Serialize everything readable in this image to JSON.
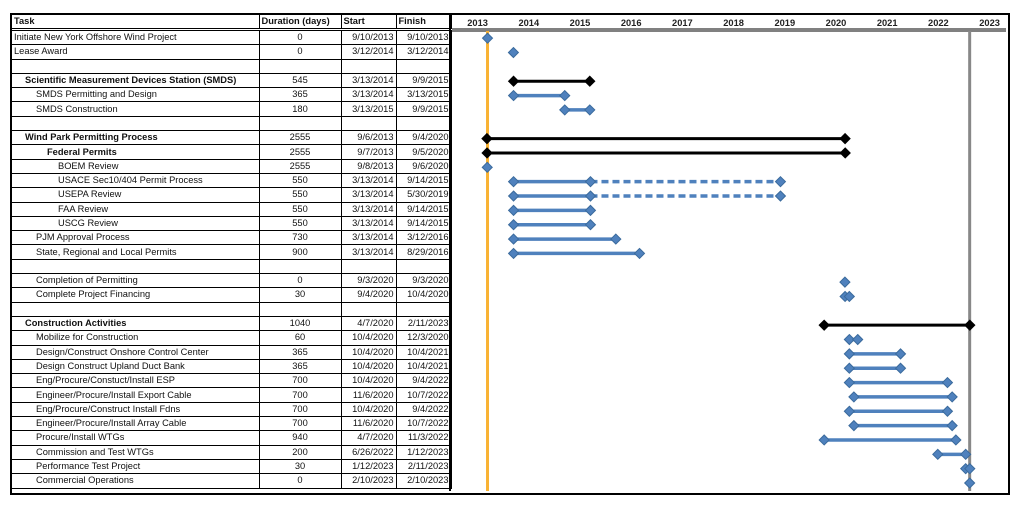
{
  "chart_data": {
    "type": "gantt",
    "columns": [
      "Task",
      "Duration (days)",
      "Start",
      "Finish"
    ],
    "x_ticks": [
      "2013",
      "2014",
      "2015",
      "2016",
      "2017",
      "2018",
      "2019",
      "2020",
      "2021",
      "2022",
      "2023"
    ],
    "xlim": [
      "1/1/2013",
      "12/31/2023"
    ],
    "grid": false,
    "colors": {
      "task": "#4f81bd",
      "summary": "#000000",
      "start_line": "#f9b233",
      "end_line": "#888888"
    },
    "reference_lines": [
      {
        "date": "9/10/2013",
        "color": "#f9b233"
      },
      {
        "date": "2/10/2023",
        "color": "#888888"
      }
    ],
    "rows": [
      {
        "task": "Initiate New York Offshore Wind Project",
        "level": 0,
        "bold": false,
        "duration": "0",
        "start": "9/10/2013",
        "finish": "9/10/2013",
        "kind": "milestone"
      },
      {
        "task": "Lease Award",
        "level": 0,
        "bold": false,
        "duration": "0",
        "start": "3/12/2014",
        "finish": "3/12/2014",
        "kind": "milestone"
      },
      {
        "task": "",
        "level": 0,
        "bold": false,
        "duration": "",
        "start": "",
        "finish": "",
        "kind": "blank"
      },
      {
        "task": "Scientific Measurement Devices Station (SMDS)",
        "level": 1,
        "bold": true,
        "duration": "545",
        "start": "3/13/2014",
        "finish": "9/9/2015",
        "kind": "summary"
      },
      {
        "task": "SMDS Permitting and Design",
        "level": 2,
        "bold": false,
        "duration": "365",
        "start": "3/13/2014",
        "finish": "3/13/2015",
        "kind": "task"
      },
      {
        "task": "SMDS Construction",
        "level": 2,
        "bold": false,
        "duration": "180",
        "start": "3/13/2015",
        "finish": "9/9/2015",
        "kind": "task"
      },
      {
        "task": "",
        "level": 0,
        "bold": false,
        "duration": "",
        "start": "",
        "finish": "",
        "kind": "blank"
      },
      {
        "task": "Wind Park Permitting Process",
        "level": 1,
        "bold": true,
        "duration": "2555",
        "start": "9/6/2013",
        "finish": "9/4/2020",
        "kind": "summary"
      },
      {
        "task": "Federal Permits",
        "level": 3,
        "bold": true,
        "duration": "2555",
        "start": "9/7/2013",
        "finish": "9/5/2020",
        "kind": "summary"
      },
      {
        "task": "BOEM Review",
        "level": 4,
        "bold": false,
        "duration": "2555",
        "start": "9/8/2013",
        "finish": "9/6/2020",
        "kind": "milestone"
      },
      {
        "task": "USACE Sec10/404 Permit Process",
        "level": 4,
        "bold": false,
        "duration": "550",
        "start": "3/13/2014",
        "finish": "9/14/2015",
        "kind": "task",
        "dashed_to": "5/30/2019"
      },
      {
        "task": "USEPA Review",
        "level": 4,
        "bold": false,
        "duration": "550",
        "start": "3/13/2014",
        "finish": "5/30/2019",
        "kind": "task",
        "solid_to": "9/14/2015",
        "dashed_to": "5/30/2019"
      },
      {
        "task": "FAA Review",
        "level": 4,
        "bold": false,
        "duration": "550",
        "start": "3/13/2014",
        "finish": "9/14/2015",
        "kind": "task"
      },
      {
        "task": "USCG Review",
        "level": 4,
        "bold": false,
        "duration": "550",
        "start": "3/13/2014",
        "finish": "9/14/2015",
        "kind": "task"
      },
      {
        "task": "PJM Approval Process",
        "level": 2,
        "bold": false,
        "duration": "730",
        "start": "3/13/2014",
        "finish": "3/12/2016",
        "kind": "task"
      },
      {
        "task": "State, Regional and Local Permits",
        "level": 2,
        "bold": false,
        "duration": "900",
        "start": "3/13/2014",
        "finish": "8/29/2016",
        "kind": "task"
      },
      {
        "task": "",
        "level": 0,
        "bold": false,
        "duration": "",
        "start": "",
        "finish": "",
        "kind": "blank"
      },
      {
        "task": "Completion of Permitting",
        "level": 2,
        "bold": false,
        "duration": "0",
        "start": "9/3/2020",
        "finish": "9/3/2020",
        "kind": "milestone"
      },
      {
        "task": "Complete Project Financing",
        "level": 2,
        "bold": false,
        "duration": "30",
        "start": "9/4/2020",
        "finish": "10/4/2020",
        "kind": "task"
      },
      {
        "task": "",
        "level": 0,
        "bold": false,
        "duration": "",
        "start": "",
        "finish": "",
        "kind": "blank"
      },
      {
        "task": "Construction Activities",
        "level": 1,
        "bold": true,
        "duration": "1040",
        "start": "4/7/2020",
        "finish": "2/11/2023",
        "kind": "summary"
      },
      {
        "task": "Mobilize for Construction",
        "level": 2,
        "bold": false,
        "duration": "60",
        "start": "10/4/2020",
        "finish": "12/3/2020",
        "kind": "task"
      },
      {
        "task": "Design/Construct Onshore Control Center",
        "level": 2,
        "bold": false,
        "duration": "365",
        "start": "10/4/2020",
        "finish": "10/4/2021",
        "kind": "task"
      },
      {
        "task": "Design Construct Upland Duct Bank",
        "level": 2,
        "bold": false,
        "duration": "365",
        "start": "10/4/2020",
        "finish": "10/4/2021",
        "kind": "task"
      },
      {
        "task": "Eng/Procure/Constuct/Install ESP",
        "level": 2,
        "bold": false,
        "duration": "700",
        "start": "10/4/2020",
        "finish": "9/4/2022",
        "kind": "task"
      },
      {
        "task": "Engineer/Procure/Install Export Cable",
        "level": 2,
        "bold": false,
        "duration": "700",
        "start": "11/6/2020",
        "finish": "10/7/2022",
        "kind": "task"
      },
      {
        "task": "Eng/Procure/Construct Install Fdns",
        "level": 2,
        "bold": false,
        "duration": "700",
        "start": "10/4/2020",
        "finish": "9/4/2022",
        "kind": "task"
      },
      {
        "task": "Engineer/Procure/Install Array Cable",
        "level": 2,
        "bold": false,
        "duration": "700",
        "start": "11/6/2020",
        "finish": "10/7/2022",
        "kind": "task"
      },
      {
        "task": "Procure/Install WTGs",
        "level": 2,
        "bold": false,
        "duration": "940",
        "start": "4/7/2020",
        "finish": "11/3/2022",
        "kind": "task"
      },
      {
        "task": "Commission and Test WTGs",
        "level": 2,
        "bold": false,
        "duration": "200",
        "start": "6/26/2022",
        "finish": "1/12/2023",
        "kind": "task"
      },
      {
        "task": "Performance Test Project",
        "level": 2,
        "bold": false,
        "duration": "30",
        "start": "1/12/2023",
        "finish": "2/11/2023",
        "kind": "task"
      },
      {
        "task": "Commercial Operations",
        "level": 2,
        "bold": false,
        "duration": "0",
        "start": "2/10/2023",
        "finish": "2/10/2023",
        "kind": "milestone"
      }
    ]
  }
}
